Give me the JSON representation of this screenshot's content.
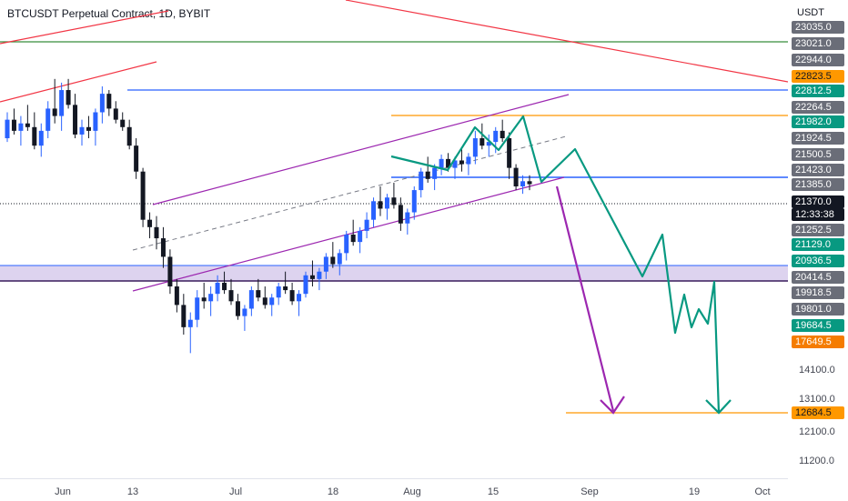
{
  "chart_title": "BTCUSDT Perpetual Contract, 1D, BYBIT",
  "chart_data": {
    "type": "candlestick",
    "currency": "USDT",
    "x_ticks": [
      "Jun",
      "13",
      "Jul",
      "18",
      "Aug",
      "15",
      "Sep",
      "19",
      "Oct"
    ],
    "price_tags": [
      {
        "label": "23035.0",
        "bg": "#6a6d78",
        "fg": "#ffffff"
      },
      {
        "label": "23021.0",
        "bg": "#6a6d78",
        "fg": "#ffffff"
      },
      {
        "label": "22944.0",
        "bg": "#6a6d78",
        "fg": "#ffffff"
      },
      {
        "label": "22823.5",
        "bg": "#ff9800",
        "fg": "#131722"
      },
      {
        "label": "22812.5",
        "bg": "#089981",
        "fg": "#ffffff"
      },
      {
        "label": "22264.5",
        "bg": "#6a6d78",
        "fg": "#ffffff"
      },
      {
        "label": "21982.0",
        "bg": "#089981",
        "fg": "#ffffff"
      },
      {
        "label": "21924.5",
        "bg": "#6a6d78",
        "fg": "#ffffff"
      },
      {
        "label": "21500.5",
        "bg": "#6a6d78",
        "fg": "#ffffff"
      },
      {
        "label": "21423.0",
        "bg": "#6a6d78",
        "fg": "#ffffff"
      },
      {
        "label": "21385.0",
        "bg": "#6a6d78",
        "fg": "#ffffff"
      },
      {
        "label": "21370.0",
        "bg": "#131722",
        "fg": "#ffffff"
      },
      {
        "label": "12:33:38",
        "bg": "#131722",
        "fg": "#ffffff"
      },
      {
        "label": "21252.5",
        "bg": "#6a6d78",
        "fg": "#ffffff"
      },
      {
        "label": "21129.0",
        "bg": "#089981",
        "fg": "#ffffff"
      },
      {
        "label": "20936.5",
        "bg": "#089981",
        "fg": "#ffffff"
      },
      {
        "label": "20414.5",
        "bg": "#6a6d78",
        "fg": "#ffffff"
      },
      {
        "label": "19918.5",
        "bg": "#6a6d78",
        "fg": "#ffffff"
      },
      {
        "label": "19801.0",
        "bg": "#6a6d78",
        "fg": "#ffffff"
      },
      {
        "label": "19684.5",
        "bg": "#089981",
        "fg": "#ffffff"
      },
      {
        "label": "17649.5",
        "bg": "#f57c00",
        "fg": "#ffffff"
      }
    ],
    "axis_ticks": [
      "14100.0",
      "13100.0",
      "12684.5",
      "12100.0",
      "11200.0"
    ],
    "highlight_tick": {
      "label": "12684.5",
      "bg": "#ff9800",
      "fg": "#131722"
    },
    "candles": [
      [
        21700,
        22050,
        21650,
        21950
      ],
      [
        21950,
        22100,
        21750,
        21800
      ],
      [
        21800,
        22000,
        21600,
        21900
      ],
      [
        21900,
        22150,
        21800,
        21850
      ],
      [
        21850,
        22050,
        21550,
        21600
      ],
      [
        21600,
        21900,
        21450,
        21800
      ],
      [
        21800,
        22200,
        21700,
        22100
      ],
      [
        22100,
        22500,
        21900,
        22000
      ],
      [
        22000,
        22450,
        21800,
        22350
      ],
      [
        22350,
        22500,
        22100,
        22150
      ],
      [
        22150,
        22300,
        21700,
        21750
      ],
      [
        21750,
        21950,
        21600,
        21850
      ],
      [
        21850,
        22000,
        21700,
        21800
      ],
      [
        21800,
        22100,
        21600,
        22050
      ],
      [
        22050,
        22400,
        21900,
        22300
      ],
      [
        22300,
        22350,
        22000,
        22100
      ],
      [
        22100,
        22200,
        21900,
        21950
      ],
      [
        21950,
        22050,
        21800,
        21850
      ],
      [
        21850,
        21950,
        21550,
        21600
      ],
      [
        21600,
        21700,
        21150,
        21250
      ],
      [
        21250,
        21300,
        20500,
        20600
      ],
      [
        20600,
        20700,
        20350,
        20500
      ],
      [
        20500,
        20650,
        20200,
        20350
      ],
      [
        20350,
        20500,
        19950,
        20100
      ],
      [
        20100,
        20200,
        19600,
        19700
      ],
      [
        19700,
        19800,
        19350,
        19450
      ],
      [
        19450,
        19600,
        19050,
        19150
      ],
      [
        19150,
        19350,
        18800,
        19250
      ],
      [
        19250,
        19650,
        19150,
        19550
      ],
      [
        19550,
        19750,
        19400,
        19500
      ],
      [
        19500,
        19700,
        19300,
        19600
      ],
      [
        19600,
        19850,
        19500,
        19750
      ],
      [
        19750,
        19900,
        19600,
        19650
      ],
      [
        19650,
        19800,
        19450,
        19500
      ],
      [
        19500,
        19600,
        19250,
        19300
      ],
      [
        19300,
        19450,
        19100,
        19400
      ],
      [
        19400,
        19700,
        19300,
        19650
      ],
      [
        19650,
        19800,
        19500,
        19550
      ],
      [
        19550,
        19700,
        19400,
        19450
      ],
      [
        19450,
        19600,
        19300,
        19550
      ],
      [
        19550,
        19750,
        19450,
        19700
      ],
      [
        19700,
        19900,
        19600,
        19650
      ],
      [
        19650,
        19750,
        19450,
        19500
      ],
      [
        19500,
        19650,
        19300,
        19600
      ],
      [
        19600,
        19900,
        19550,
        19850
      ],
      [
        19850,
        20050,
        19700,
        19800
      ],
      [
        19800,
        19950,
        19650,
        19900
      ],
      [
        19900,
        20150,
        19800,
        20100
      ],
      [
        20100,
        20300,
        19950,
        20000
      ],
      [
        20000,
        20200,
        19850,
        20150
      ],
      [
        20150,
        20450,
        20050,
        20400
      ],
      [
        20400,
        20600,
        20250,
        20300
      ],
      [
        20300,
        20500,
        20150,
        20450
      ],
      [
        20450,
        20700,
        20350,
        20600
      ],
      [
        20600,
        20900,
        20500,
        20850
      ],
      [
        20850,
        21050,
        20650,
        20750
      ],
      [
        20750,
        20950,
        20600,
        20900
      ],
      [
        20900,
        21100,
        20750,
        20800
      ],
      [
        20800,
        20900,
        20450,
        20550
      ],
      [
        20550,
        20750,
        20400,
        20700
      ],
      [
        20700,
        21050,
        20600,
        21000
      ],
      [
        21000,
        21300,
        20900,
        21250
      ],
      [
        21250,
        21450,
        21100,
        21150
      ],
      [
        21150,
        21350,
        21000,
        21300
      ],
      [
        21300,
        21480,
        21200,
        21420
      ],
      [
        21420,
        21500,
        21250,
        21300
      ],
      [
        21300,
        21450,
        21150,
        21400
      ],
      [
        21400,
        21550,
        21250,
        21350
      ],
      [
        21350,
        21500,
        21200,
        21450
      ],
      [
        21450,
        21800,
        21350,
        21700
      ],
      [
        21700,
        21900,
        21550,
        21600
      ],
      [
        21600,
        21750,
        21450,
        21650
      ],
      [
        21650,
        21850,
        21500,
        21800
      ],
      [
        21800,
        21950,
        21650,
        21700
      ],
      [
        21700,
        21780,
        21150,
        21300
      ],
      [
        21300,
        21350,
        21000,
        21050
      ],
      [
        21050,
        21200,
        20950,
        21120
      ],
      [
        21120,
        21200,
        21000,
        21080
      ]
    ]
  }
}
